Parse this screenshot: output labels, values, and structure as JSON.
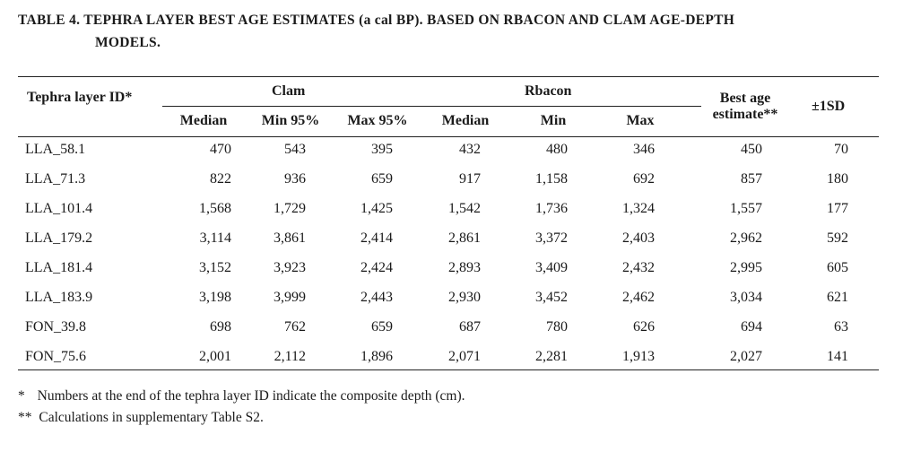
{
  "title_line1": "TABLE 4. TEPHRA LAYER BEST AGE ESTIMATES (a cal BP). BASED ON RBACON AND CLAM AGE-DEPTH",
  "title_line2": "MODELS.",
  "headers": {
    "id": "Tephra layer ID*",
    "clam": "Clam",
    "rbacon": "Rbacon",
    "best_line1": "Best age",
    "best_line2": "estimate**",
    "sd": "±1SD",
    "sub": [
      "Median",
      "Min 95%",
      "Max 95%",
      "Median",
      "Min",
      "Max"
    ]
  },
  "rows": [
    [
      "LLA_58.1",
      "470",
      "543",
      "395",
      "432",
      "480",
      "346",
      "450",
      "70"
    ],
    [
      "LLA_71.3",
      "822",
      "936",
      "659",
      "917",
      "1,158",
      "692",
      "857",
      "180"
    ],
    [
      "LLA_101.4",
      "1,568",
      "1,729",
      "1,425",
      "1,542",
      "1,736",
      "1,324",
      "1,557",
      "177"
    ],
    [
      "LLA_179.2",
      "3,114",
      "3,861",
      "2,414",
      "2,861",
      "3,372",
      "2,403",
      "2,962",
      "592"
    ],
    [
      "LLA_181.4",
      "3,152",
      "3,923",
      "2,424",
      "2,893",
      "3,409",
      "2,432",
      "2,995",
      "605"
    ],
    [
      "LLA_183.9",
      "3,198",
      "3,999",
      "2,443",
      "2,930",
      "3,452",
      "2,462",
      "3,034",
      "621"
    ],
    [
      "FON_39.8",
      "698",
      "762",
      "659",
      "687",
      "780",
      "626",
      "694",
      "63"
    ],
    [
      "FON_75.6",
      "2,001",
      "2,112",
      "1,896",
      "2,071",
      "2,281",
      "1,913",
      "2,027",
      "141"
    ]
  ],
  "footnotes": [
    {
      "mark": "*",
      "text": "Numbers at the end of the tephra layer ID indicate the composite depth (cm)."
    },
    {
      "mark": "**",
      "text": "Calculations in supplementary Table S2."
    }
  ]
}
